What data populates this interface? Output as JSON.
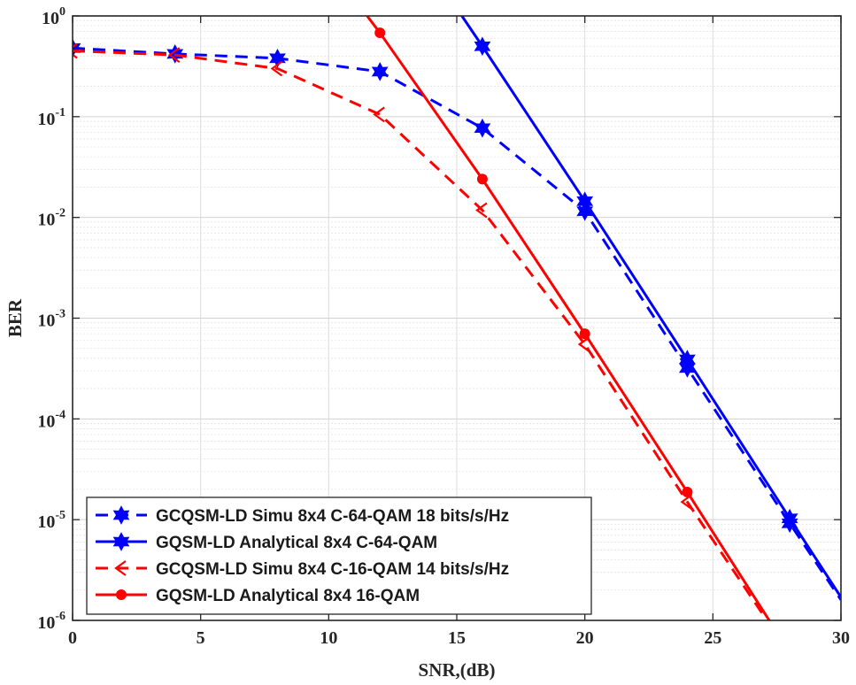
{
  "chart_data": {
    "type": "line",
    "title": "",
    "xlabel": "SNR,(dB)",
    "ylabel": "BER",
    "xlim": [
      0,
      30
    ],
    "ylim": [
      1e-06,
      1
    ],
    "yscale": "log",
    "grid": true,
    "legend_position": "bottom-left",
    "x_ticks": [
      0,
      5,
      10,
      15,
      20,
      25,
      30
    ],
    "y_ticks": [
      {
        "base": "10",
        "exp": "0",
        "value": 1
      },
      {
        "base": "10",
        "exp": "-1",
        "value": 0.1
      },
      {
        "base": "10",
        "exp": "-2",
        "value": 0.01
      },
      {
        "base": "10",
        "exp": "-3",
        "value": 0.001
      },
      {
        "base": "10",
        "exp": "-4",
        "value": 0.0001
      },
      {
        "base": "10",
        "exp": "-5",
        "value": 1e-05
      },
      {
        "base": "10",
        "exp": "-6",
        "value": 1e-06
      }
    ],
    "series": [
      {
        "name": "GCQSM-LD Simu 8x4 C-64-QAM 18 bits/s/Hz",
        "color": "#0000ff",
        "style": "dashed",
        "marker": "hexagram",
        "x": [
          0,
          4,
          8,
          12,
          16,
          20,
          24,
          28,
          30
        ],
        "y": [
          0.48,
          0.42,
          0.38,
          0.28,
          0.077,
          0.0115,
          0.00032,
          9.2e-06,
          1.6e-06
        ],
        "marked": [
          true,
          true,
          true,
          true,
          true,
          true,
          true,
          true,
          false
        ]
      },
      {
        "name": "GQSM-LD Analytical 8x4 C-64-QAM",
        "color": "#0000ff",
        "style": "solid",
        "marker": "hexagram",
        "x": [
          15.2,
          16,
          20,
          24,
          28,
          30
        ],
        "y": [
          1.0,
          0.5,
          0.0145,
          0.00039,
          1.03e-05,
          1.7e-06
        ],
        "marked": [
          false,
          true,
          true,
          true,
          true,
          false
        ]
      },
      {
        "name": "GCQSM-LD Simu 8x4 C-16-QAM 14 bits/s/Hz",
        "color": "#ff0000",
        "style": "dashed",
        "marker": "triangle-left",
        "x": [
          0,
          4,
          8,
          12,
          16,
          20,
          24,
          27
        ],
        "y": [
          0.45,
          0.41,
          0.3,
          0.105,
          0.0118,
          0.00055,
          1.5e-05,
          1.1e-06
        ],
        "marked": [
          true,
          true,
          true,
          true,
          true,
          true,
          true,
          false
        ]
      },
      {
        "name": "GQSM-LD Analytical 8x4 16-QAM",
        "color": "#ff0000",
        "style": "solid",
        "marker": "circle",
        "x": [
          11.5,
          12,
          16,
          20,
          24,
          27.2
        ],
        "y": [
          1.0,
          0.68,
          0.024,
          0.0007,
          1.88e-05,
          1e-06
        ],
        "marked": [
          false,
          true,
          true,
          true,
          true,
          false
        ]
      }
    ]
  }
}
